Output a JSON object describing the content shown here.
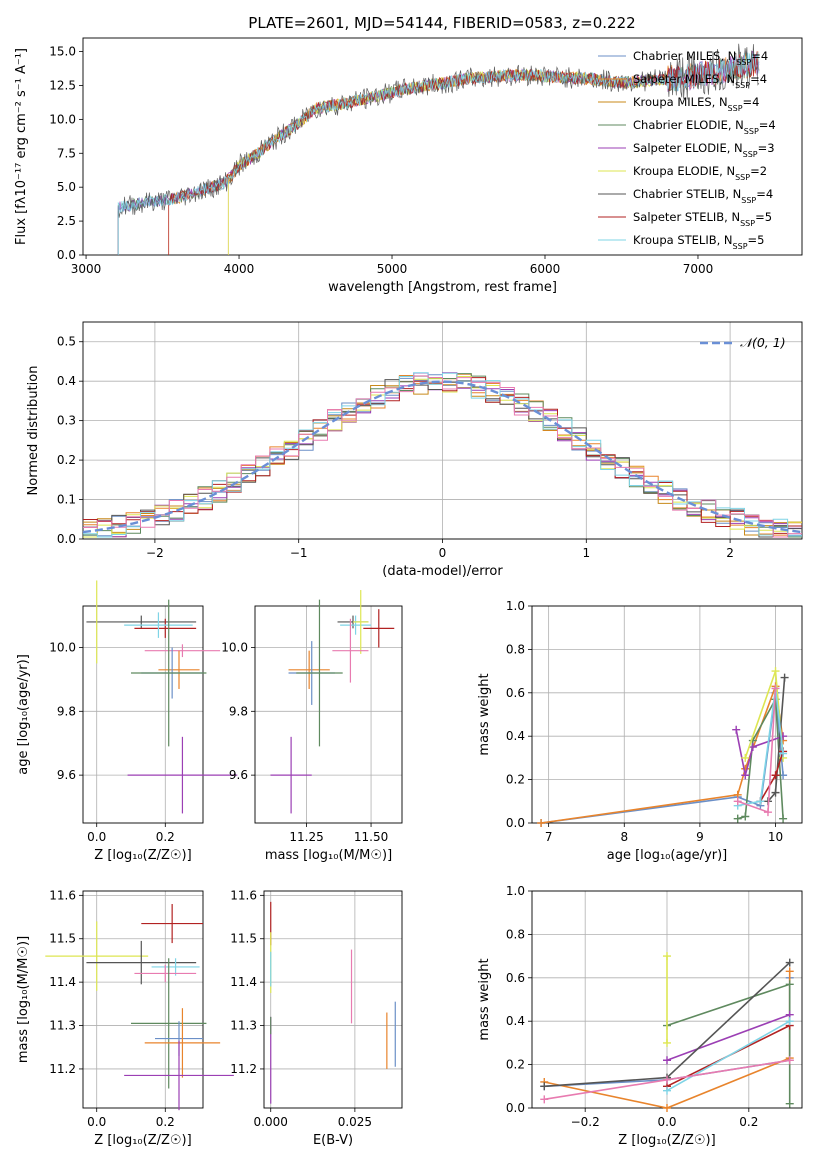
{
  "figure": {
    "title": "PLATE=2601, MJD=54144, FIBERID=0583, z=0.222"
  },
  "colors": {
    "Chabrier MILES": "#6b8fc7",
    "Salpeter MILES": "#e8842c",
    "Kroupa MILES": "#c8891a",
    "Chabrier ELODIE": "#5f8a5f",
    "Salpeter ELODIE": "#9b3fb4",
    "Kroupa ELODIE": "#dde652",
    "Chabrier STELIB": "#555555",
    "Salpeter STELIB": "#b22222",
    "Kroupa STELIB": "#7fd4e6",
    "extra_pink": "#e87bb0",
    "normal_curve": "#6a8fd6"
  },
  "chart_data": [
    {
      "id": "spectrum",
      "type": "line",
      "title": "PLATE=2601, MJD=54144, FIBERID=0583, z=0.222",
      "xlabel": "wavelength [Angstrom, rest frame]",
      "ylabel": "Flux [fλ10⁻¹⁷ erg cm⁻² s⁻¹ A⁻¹]",
      "xlim": [
        2980,
        7680
      ],
      "ylim": [
        0,
        16
      ],
      "xticks": [
        "3000",
        "4000",
        "5000",
        "6000",
        "7000"
      ],
      "yticks": [
        "0.0",
        "2.5",
        "5.0",
        "7.5",
        "10.0",
        "12.5",
        "15.0"
      ],
      "legend": "top-right",
      "series": [
        {
          "name": "Chabrier MILES, N_SSP=4",
          "label_html": "Chabrier MILES, N<tspan font-size='8' baseline-shift='sub'>SSP</tspan>=4"
        },
        {
          "name": "Salpeter MILES, N_SSP=4",
          "label_html": "Salpeter MILES, N<tspan font-size='8' baseline-shift='sub'>SSP</tspan>=4"
        },
        {
          "name": "Kroupa MILES, N_SSP=4",
          "label_html": "Kroupa MILES, N<tspan font-size='8' baseline-shift='sub'>SSP</tspan>=4"
        },
        {
          "name": "Chabrier ELODIE, N_SSP=4",
          "label_html": "Chabrier ELODIE, N<tspan font-size='8' baseline-shift='sub'>SSP</tspan>=4"
        },
        {
          "name": "Salpeter ELODIE, N_SSP=3",
          "label_html": "Salpeter ELODIE, N<tspan font-size='8' baseline-shift='sub'>SSP</tspan>=3"
        },
        {
          "name": "Kroupa ELODIE, N_SSP=2",
          "label_html": "Kroupa ELODIE, N<tspan font-size='8' baseline-shift='sub'>SSP</tspan>=2"
        },
        {
          "name": "Chabrier STELIB, N_SSP=4",
          "label_html": "Chabrier STELIB, N<tspan font-size='8' baseline-shift='sub'>SSP</tspan>=4"
        },
        {
          "name": "Salpeter STELIB, N_SSP=5",
          "label_html": "Salpeter STELIB, N<tspan font-size='8' baseline-shift='sub'>SSP</tspan>=5"
        },
        {
          "name": "Kroupa STELIB, N_SSP=5",
          "label_html": "Kroupa STELIB, N<tspan font-size='8' baseline-shift='sub'>SSP</tspan>=5"
        }
      ],
      "continuum": {
        "x": [
          3210,
          3300,
          3400,
          3500,
          3600,
          3700,
          3800,
          3900,
          3950,
          4000,
          4100,
          4200,
          4300,
          4400,
          4500,
          4700,
          4900,
          5100,
          5300,
          5500,
          5700,
          5900,
          6100,
          6300,
          6500,
          6700,
          6900,
          7100,
          7300,
          7400
        ],
        "y": [
          3.5,
          3.7,
          3.9,
          4.0,
          4.2,
          4.6,
          4.9,
          5.3,
          5.8,
          6.6,
          7.3,
          8.2,
          9.0,
          9.8,
          10.8,
          11.2,
          11.7,
          12.3,
          12.6,
          13.0,
          13.2,
          13.3,
          13.1,
          13.0,
          12.7,
          12.9,
          13.1,
          13.4,
          13.9,
          14.2
        ]
      }
    },
    {
      "id": "histogram",
      "type": "line",
      "xlabel": "(data-model)/error",
      "ylabel": "Normed distribution",
      "xlim": [
        -2.5,
        2.5
      ],
      "ylim": [
        0,
        0.55
      ],
      "xticks": [
        "−2",
        "−1",
        "0",
        "1",
        "2"
      ],
      "yticks": [
        "0.0",
        "0.1",
        "0.2",
        "0.3",
        "0.4",
        "0.5"
      ],
      "legend": "top-right",
      "series": [
        {
          "name": "𝒩(0, 1)"
        }
      ],
      "bin_width": 0.1,
      "bin_start": -2.5
    },
    {
      "id": "age-vs-Z",
      "type": "scatter",
      "xlabel": "Z [log₁₀(Z/Z☉)]",
      "ylabel": "age  [log₁₀(age/yr)]",
      "xlim": [
        -0.04,
        0.31
      ],
      "ylim": [
        9.45,
        10.13
      ],
      "xticks": [
        "0.0",
        "0.2"
      ],
      "yticks": [
        "9.6",
        "9.8",
        "10.0"
      ],
      "points": [
        {
          "x": 0.13,
          "y": 10.08,
          "xerr": 0.16,
          "yerr": 0.02,
          "series": "Chabrier STELIB"
        },
        {
          "x": 0.2,
          "y": 10.06,
          "xerr": 0.09,
          "yerr": 0.03,
          "series": "Salpeter STELIB"
        },
        {
          "x": 0.18,
          "y": 10.07,
          "xerr": 0.1,
          "yerr": 0.04,
          "series": "Kroupa STELIB"
        },
        {
          "x": 0.0,
          "y": 10.08,
          "xerr": 0.0,
          "yerr": 0.13,
          "series": "Kroupa ELODIE"
        },
        {
          "x": 0.25,
          "y": 9.99,
          "xerr": 0.11,
          "yerr": 0.02,
          "series": "extra_pink"
        },
        {
          "x": 0.24,
          "y": 9.93,
          "xerr": 0.06,
          "yerr": 0.06,
          "series": "Salpeter MILES"
        },
        {
          "x": 0.22,
          "y": 9.92,
          "xerr": 0.09,
          "yerr": 0.08,
          "series": "Chabrier MILES"
        },
        {
          "x": 0.21,
          "y": 9.92,
          "xerr": 0.11,
          "yerr": 0.23,
          "series": "Chabrier ELODIE"
        },
        {
          "x": 0.25,
          "y": 9.6,
          "xerr": 0.16,
          "yerr": 0.12,
          "series": "Salpeter ELODIE"
        }
      ]
    },
    {
      "id": "age-vs-mass",
      "type": "scatter",
      "xlabel": "mass [log₁₀(M/M☉)]",
      "ylabel": "",
      "xlim": [
        11.05,
        11.62
      ],
      "ylim": [
        9.45,
        10.13
      ],
      "xticks": [
        "11.25",
        "11.50"
      ],
      "yticks": [
        "9.6",
        "9.8",
        "10.0"
      ],
      "points": [
        {
          "x": 11.43,
          "y": 10.08,
          "xerr": 0.06,
          "yerr": 0.02,
          "series": "Chabrier STELIB"
        },
        {
          "x": 11.53,
          "y": 10.06,
          "xerr": 0.06,
          "yerr": 0.06,
          "series": "Salpeter STELIB"
        },
        {
          "x": 11.44,
          "y": 10.07,
          "xerr": 0.06,
          "yerr": 0.03,
          "series": "Kroupa STELIB"
        },
        {
          "x": 11.46,
          "y": 10.08,
          "xerr": 0.03,
          "yerr": 0.1,
          "series": "Kroupa ELODIE"
        },
        {
          "x": 11.42,
          "y": 9.99,
          "xerr": 0.07,
          "yerr": 0.1,
          "series": "extra_pink"
        },
        {
          "x": 11.26,
          "y": 9.93,
          "xerr": 0.08,
          "yerr": 0.06,
          "series": "Salpeter MILES"
        },
        {
          "x": 11.27,
          "y": 9.92,
          "xerr": 0.09,
          "yerr": 0.1,
          "series": "Chabrier MILES"
        },
        {
          "x": 11.3,
          "y": 9.92,
          "xerr": 0.09,
          "yerr": 0.23,
          "series": "Chabrier ELODIE"
        },
        {
          "x": 11.19,
          "y": 9.6,
          "xerr": 0.08,
          "yerr": 0.12,
          "series": "Salpeter ELODIE"
        }
      ]
    },
    {
      "id": "mass-weight-vs-age",
      "type": "line",
      "xlabel": "age  [log₁₀(age/yr)]",
      "ylabel": "mass weight",
      "xlim": [
        6.78,
        10.35
      ],
      "ylim": [
        0,
        1
      ],
      "xticks": [
        "7",
        "8",
        "9",
        "10"
      ],
      "yticks": [
        "0.0",
        "0.2",
        "0.4",
        "0.6",
        "0.8",
        "1.0"
      ],
      "series": [
        {
          "name": "Chabrier MILES",
          "x": [
            6.9,
            9.5,
            9.8,
            10.0,
            10.1
          ],
          "y": [
            0.0,
            0.12,
            0.08,
            0.6,
            0.22
          ]
        },
        {
          "name": "Salpeter MILES",
          "x": [
            6.9,
            9.5,
            9.6,
            10.0,
            10.1
          ],
          "y": [
            0.0,
            0.13,
            0.25,
            0.63,
            0.38
          ]
        },
        {
          "name": "Chabrier ELODIE",
          "x": [
            9.5,
            9.6,
            9.7,
            10.0,
            10.1
          ],
          "y": [
            0.02,
            0.03,
            0.38,
            0.57,
            0.02
          ]
        },
        {
          "name": "Salpeter ELODIE",
          "x": [
            9.48,
            9.6,
            9.7,
            10.1
          ],
          "y": [
            0.43,
            0.22,
            0.35,
            0.4
          ]
        },
        {
          "name": "Kroupa ELODIE",
          "x": [
            9.6,
            10.0,
            10.1
          ],
          "y": [
            0.3,
            0.7,
            0.3
          ]
        },
        {
          "name": "Chabrier STELIB",
          "x": [
            9.9,
            10.0,
            10.12
          ],
          "y": [
            0.1,
            0.14,
            0.67
          ]
        },
        {
          "name": "Salpeter STELIB",
          "x": [
            9.8,
            10.0,
            10.1
          ],
          "y": [
            0.1,
            0.22,
            0.33
          ]
        },
        {
          "name": "Kroupa STELIB",
          "x": [
            9.5,
            9.8,
            10.0,
            10.1
          ],
          "y": [
            0.08,
            0.1,
            0.62,
            0.32
          ]
        },
        {
          "name": "extra_pink",
          "x": [
            9.5,
            9.9,
            10.0
          ],
          "y": [
            0.1,
            0.05,
            0.62
          ]
        }
      ]
    },
    {
      "id": "mass-vs-Z",
      "type": "scatter",
      "xlabel": "Z [log₁₀(Z/Z☉)]",
      "ylabel": "mass [log₁₀(M/M☉)]",
      "xlim": [
        -0.04,
        0.31
      ],
      "ylim": [
        11.11,
        11.61
      ],
      "xticks": [
        "0.0",
        "0.2"
      ],
      "yticks": [
        "11.2",
        "11.3",
        "11.4",
        "11.5",
        "11.6"
      ],
      "points": [
        {
          "x": 0.22,
          "y": 11.535,
          "xerr": 0.09,
          "yerr": 0.045,
          "series": "Salpeter STELIB"
        },
        {
          "x": 0.0,
          "y": 11.46,
          "xerr": 0.15,
          "yerr": 0.08,
          "series": "Kroupa ELODIE"
        },
        {
          "x": 0.13,
          "y": 11.445,
          "xerr": 0.16,
          "yerr": 0.05,
          "series": "Chabrier STELIB"
        },
        {
          "x": 0.23,
          "y": 11.435,
          "xerr": 0.07,
          "yerr": 0.02,
          "series": "Kroupa STELIB"
        },
        {
          "x": 0.2,
          "y": 11.42,
          "xerr": 0.09,
          "yerr": 0.02,
          "series": "extra_pink"
        },
        {
          "x": 0.21,
          "y": 11.305,
          "xerr": 0.11,
          "yerr": 0.15,
          "series": "Chabrier ELODIE"
        },
        {
          "x": 0.24,
          "y": 11.27,
          "xerr": 0.07,
          "yerr": 0.04,
          "series": "Chabrier MILES"
        },
        {
          "x": 0.25,
          "y": 11.26,
          "xerr": 0.11,
          "yerr": 0.08,
          "series": "Salpeter MILES"
        },
        {
          "x": 0.24,
          "y": 11.185,
          "xerr": 0.16,
          "yerr": 0.08,
          "series": "Salpeter ELODIE"
        }
      ]
    },
    {
      "id": "mass-vs-EBV",
      "type": "scatter",
      "xlabel": "E(B-V)",
      "ylabel": "",
      "xlim": [
        -0.002,
        0.039
      ],
      "ylim": [
        11.11,
        11.61
      ],
      "xticks": [
        "0.000",
        "0.025"
      ],
      "yticks": [
        "11.2",
        "11.3",
        "11.4",
        "11.5",
        "11.6"
      ],
      "points": [
        {
          "x": 0.0,
          "y": 11.535,
          "yerr": 0.05,
          "series": "Salpeter STELIB"
        },
        {
          "x": 0.0,
          "y": 11.445,
          "yerr": 0.07,
          "series": "Kroupa ELODIE"
        },
        {
          "x": 0.0,
          "y": 11.43,
          "yerr": 0.04,
          "series": "Kroupa STELIB"
        },
        {
          "x": 0.0,
          "y": 11.22,
          "yerr": 0.1,
          "series": "Salpeter ELODIE"
        },
        {
          "x": 0.0,
          "y": 11.3,
          "yerr": 0.02,
          "series": "Chabrier ELODIE"
        },
        {
          "x": 0.024,
          "y": 11.39,
          "yerr": 0.085,
          "series": "extra_pink"
        },
        {
          "x": 0.0345,
          "y": 11.265,
          "yerr": 0.065,
          "series": "Salpeter MILES"
        },
        {
          "x": 0.037,
          "y": 11.28,
          "yerr": 0.075,
          "series": "Chabrier MILES"
        }
      ]
    },
    {
      "id": "mass-weight-vs-Z",
      "type": "line",
      "xlabel": "Z [log₁₀(Z/Z☉)]",
      "ylabel": "mass weight",
      "xlim": [
        -0.33,
        0.33
      ],
      "ylim": [
        0,
        1
      ],
      "xticks": [
        "−0.2",
        "0.0",
        "0.2"
      ],
      "yticks": [
        "0.0",
        "0.2",
        "0.4",
        "0.6",
        "0.8",
        "1.0"
      ],
      "series": [
        {
          "name": "Chabrier MILES",
          "x": [
            -0.3,
            0.0,
            0.3,
            0.3
          ],
          "y": [
            0.1,
            0.13,
            0.22,
            0.6
          ]
        },
        {
          "name": "Salpeter MILES",
          "x": [
            -0.3,
            0.0,
            0.3,
            0.3
          ],
          "y": [
            0.12,
            0.0,
            0.23,
            0.63
          ]
        },
        {
          "name": "Chabrier ELODIE",
          "x": [
            0.0,
            0.3,
            0.3
          ],
          "y": [
            0.38,
            0.57,
            0.02
          ]
        },
        {
          "name": "Salpeter ELODIE",
          "x": [
            0.0,
            0.3
          ],
          "y": [
            0.22,
            0.43
          ]
        },
        {
          "name": "Kroupa ELODIE",
          "x": [
            0.0,
            0.0
          ],
          "y": [
            0.3,
            0.7
          ]
        },
        {
          "name": "Chabrier STELIB",
          "x": [
            -0.3,
            0.0,
            0.3
          ],
          "y": [
            0.1,
            0.14,
            0.67
          ]
        },
        {
          "name": "Salpeter STELIB",
          "x": [
            0.0,
            0.3
          ],
          "y": [
            0.1,
            0.38
          ]
        },
        {
          "name": "Kroupa STELIB",
          "x": [
            0.0,
            0.3
          ],
          "y": [
            0.08,
            0.4
          ]
        },
        {
          "name": "extra_pink",
          "x": [
            -0.3,
            0.0,
            0.3
          ],
          "y": [
            0.04,
            0.13,
            0.22
          ]
        }
      ]
    }
  ]
}
